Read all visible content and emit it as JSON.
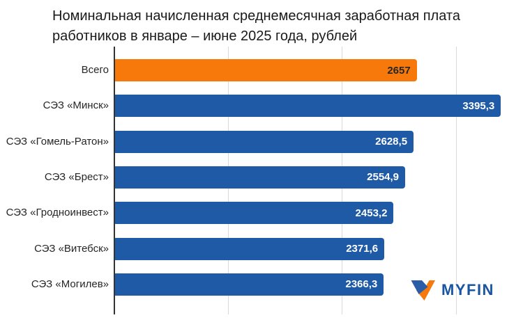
{
  "title": "Номинальная начисленная среднемесячная заработная плата работников в январе – июне 2025 года, рублей",
  "chart_data": {
    "type": "bar",
    "orientation": "horizontal",
    "title": "Номинальная начисленная среднемесячная заработная плата работников в январе – июне 2025 года, рублей",
    "categories": [
      "Всего",
      "СЭЗ «Минск»",
      "СЭЗ «Гомель-Ратон»",
      "СЭЗ «Брест»",
      "СЭЗ «Гродноинвест»",
      "СЭЗ «Витебск»",
      "СЭЗ «Могилев»"
    ],
    "values": [
      2657,
      3395.3,
      2628.5,
      2554.9,
      2453.2,
      2371.6,
      2366.3
    ],
    "value_labels": [
      "2657",
      "3395,3",
      "2628,5",
      "2554,9",
      "2453,2",
      "2371,6",
      "2366,3"
    ],
    "highlight_index": 0,
    "xlim": [
      0,
      3590
    ],
    "gridlines": [
      1000,
      2000,
      3000
    ],
    "grid": true,
    "legend": false,
    "colors": {
      "default_bar": "#1E5AA6",
      "highlight_bar": "#F7790B",
      "value_on_default": "#FFFFFF",
      "value_on_highlight": "#262626",
      "gridline": "#D9D9D9",
      "axis": "#333333"
    }
  },
  "logo": {
    "text": "MYFIN",
    "icon": "myfin-v-mark",
    "text_color": "#1A55A3",
    "icon_blue": "#2B5EA7",
    "icon_orange": "#F7790B"
  }
}
